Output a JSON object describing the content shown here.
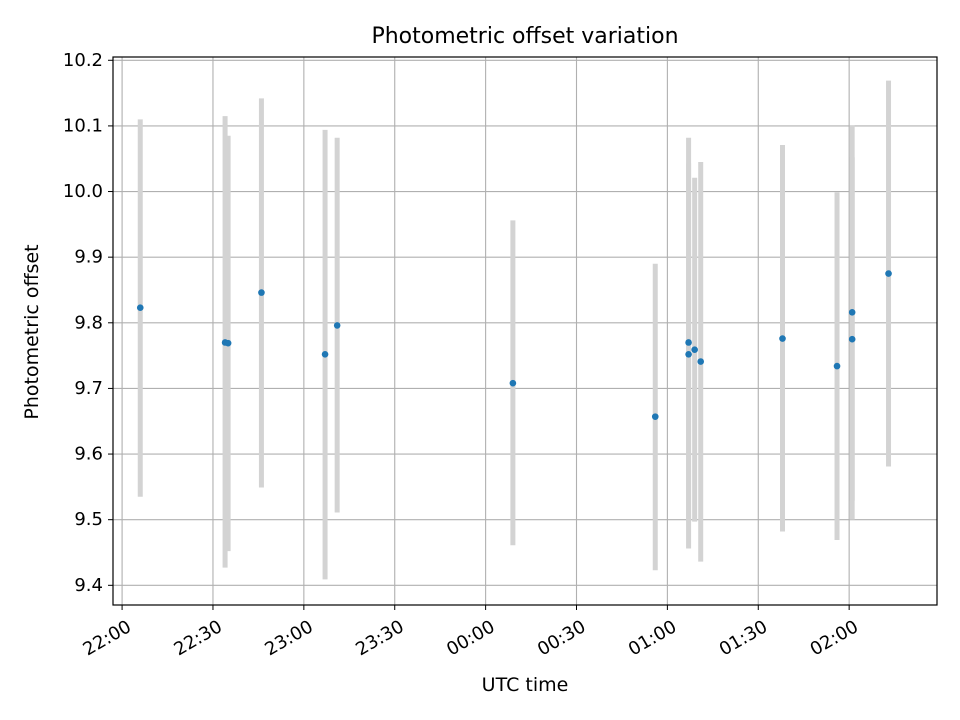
{
  "chart_data": {
    "type": "scatter",
    "title": "Photometric offset variation",
    "xlabel": "UTC time",
    "ylabel": "Photometric offset",
    "x_tick_labels": [
      "22:00",
      "22:30",
      "23:00",
      "23:30",
      "00:00",
      "00:30",
      "01:00",
      "01:30",
      "02:00"
    ],
    "y_tick_labels": [
      "9.4",
      "9.5",
      "9.6",
      "9.7",
      "9.8",
      "9.9",
      "10.0",
      "10.1",
      "10.2"
    ],
    "y_ticks": [
      9.4,
      9.5,
      9.6,
      9.7,
      9.8,
      9.9,
      10.0,
      10.1,
      10.2
    ],
    "xlim": [
      "21:57",
      "02:29"
    ],
    "ylim": [
      9.37,
      10.205
    ],
    "grid": true,
    "series": [
      {
        "marker_color": "#1f77b4",
        "errorbar_color": "#d3d3d3",
        "points": [
          {
            "time": "22:06",
            "y": 9.823,
            "low": 9.535,
            "high": 10.11
          },
          {
            "time": "22:34",
            "y": 9.77,
            "low": 9.427,
            "high": 10.115
          },
          {
            "time": "22:35",
            "y": 9.769,
            "low": 9.452,
            "high": 10.085
          },
          {
            "time": "22:46",
            "y": 9.846,
            "low": 9.549,
            "high": 10.142
          },
          {
            "time": "23:07",
            "y": 9.752,
            "low": 9.409,
            "high": 10.094
          },
          {
            "time": "23:11",
            "y": 9.796,
            "low": 9.511,
            "high": 10.082
          },
          {
            "time": "00:09",
            "y": 9.708,
            "low": 9.461,
            "high": 9.956
          },
          {
            "time": "00:56",
            "y": 9.657,
            "low": 9.423,
            "high": 9.89
          },
          {
            "time": "01:07",
            "y": 9.77,
            "low": 9.497,
            "high": 10.043
          },
          {
            "time": "01:07",
            "y": 9.752,
            "low": 9.456,
            "high": 10.082
          },
          {
            "time": "01:09",
            "y": 9.759,
            "low": 9.497,
            "high": 10.021
          },
          {
            "time": "01:11",
            "y": 9.741,
            "low": 9.436,
            "high": 10.045
          },
          {
            "time": "01:38",
            "y": 9.776,
            "low": 9.482,
            "high": 10.071
          },
          {
            "time": "01:56",
            "y": 9.734,
            "low": 9.469,
            "high": 9.999
          },
          {
            "time": "02:01",
            "y": 9.816,
            "low": 9.529,
            "high": 10.101
          },
          {
            "time": "02:01",
            "y": 9.775,
            "low": 9.5,
            "high": 10.052
          },
          {
            "time": "02:13",
            "y": 9.875,
            "low": 9.581,
            "high": 10.169
          }
        ]
      }
    ]
  }
}
